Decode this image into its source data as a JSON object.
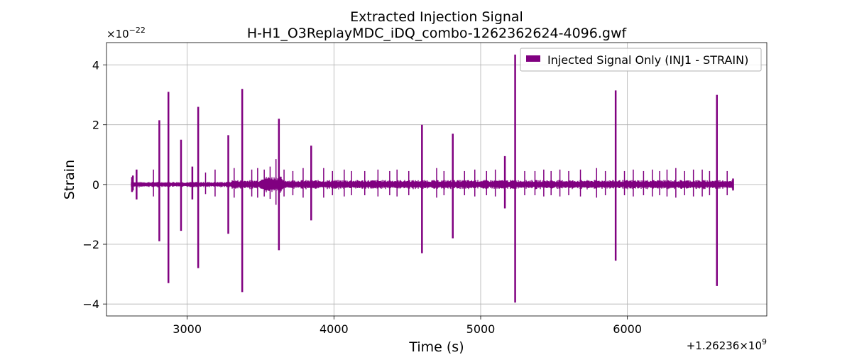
{
  "chart_data": {
    "type": "line",
    "title": "Extracted Injection Signal",
    "subtitle": "H-H1_O3ReplayMDC_iDQ_combo-1262362624-4096.gwf",
    "xlabel": "Time (s)",
    "ylabel": "Strain",
    "x_offset_label": "+1.26236×10",
    "x_offset_exp": "9",
    "y_scale_label": "×10",
    "y_scale_exp": "−22",
    "xlim": [
      2450,
      6950
    ],
    "ylim": [
      -4.4,
      4.75
    ],
    "xticks": [
      3000,
      4000,
      5000,
      6000
    ],
    "xtick_labels": [
      "3000",
      "4000",
      "5000",
      "6000"
    ],
    "yticks": [
      -4,
      -2,
      0,
      2,
      4
    ],
    "ytick_labels": [
      "−4",
      "−2",
      "0",
      "2",
      "4"
    ],
    "grid": true,
    "legend_position": "top-right",
    "series": [
      {
        "name": "Injected Signal Only (INJ1 - STRAIN)",
        "color": "#800080",
        "x_range": [
          2624,
          6720
        ],
        "baseline_amplitude": 0.15,
        "spikes": [
          {
            "x": 2630,
            "ymax": 0.3,
            "ymin": -0.2
          },
          {
            "x": 2655,
            "ymax": 0.5,
            "ymin": -0.5
          },
          {
            "x": 2810,
            "ymax": 2.15,
            "ymin": -1.9
          },
          {
            "x": 2872,
            "ymax": 3.1,
            "ymin": -3.3
          },
          {
            "x": 2958,
            "ymax": 1.5,
            "ymin": -1.55
          },
          {
            "x": 3035,
            "ymax": 0.6,
            "ymin": -0.5
          },
          {
            "x": 3075,
            "ymax": 2.6,
            "ymin": -2.8
          },
          {
            "x": 3280,
            "ymax": 1.65,
            "ymin": -1.65
          },
          {
            "x": 3375,
            "ymax": 3.2,
            "ymin": -3.6
          },
          {
            "x": 3625,
            "ymax": 2.2,
            "ymin": -2.2
          },
          {
            "x": 3845,
            "ymax": 1.3,
            "ymin": -1.2
          },
          {
            "x": 4600,
            "ymax": 2.0,
            "ymin": -2.3
          },
          {
            "x": 4810,
            "ymax": 1.7,
            "ymin": -1.8
          },
          {
            "x": 5165,
            "ymax": 0.95,
            "ymin": -0.8
          },
          {
            "x": 5235,
            "ymax": 4.35,
            "ymin": -3.95
          },
          {
            "x": 5920,
            "ymax": 3.15,
            "ymin": -2.55
          },
          {
            "x": 6610,
            "ymax": 3.0,
            "ymin": -3.4
          }
        ],
        "small_bursts": [
          {
            "x": 2770,
            "amp": 0.5
          },
          {
            "x": 3125,
            "amp": 0.4
          },
          {
            "x": 3190,
            "amp": 0.5
          },
          {
            "x": 3320,
            "amp": 0.55
          },
          {
            "x": 3440,
            "amp": 0.5
          },
          {
            "x": 3480,
            "amp": 0.55
          },
          {
            "x": 3525,
            "amp": 0.5
          },
          {
            "x": 3565,
            "amp": 0.6
          },
          {
            "x": 3605,
            "amp": 0.85
          },
          {
            "x": 3660,
            "amp": 0.5
          },
          {
            "x": 3720,
            "amp": 0.45
          },
          {
            "x": 3790,
            "amp": 0.55
          },
          {
            "x": 3930,
            "amp": 0.55
          },
          {
            "x": 3990,
            "amp": 0.45
          },
          {
            "x": 4070,
            "amp": 0.5
          },
          {
            "x": 4120,
            "amp": 0.45
          },
          {
            "x": 4210,
            "amp": 0.45
          },
          {
            "x": 4300,
            "amp": 0.5
          },
          {
            "x": 4380,
            "amp": 0.45
          },
          {
            "x": 4430,
            "amp": 0.5
          },
          {
            "x": 4510,
            "amp": 0.45
          },
          {
            "x": 4700,
            "amp": 0.55
          },
          {
            "x": 4750,
            "amp": 0.45
          },
          {
            "x": 4890,
            "amp": 0.45
          },
          {
            "x": 4960,
            "amp": 0.5
          },
          {
            "x": 5040,
            "amp": 0.45
          },
          {
            "x": 5100,
            "amp": 0.5
          },
          {
            "x": 5300,
            "amp": 0.45
          },
          {
            "x": 5370,
            "amp": 0.45
          },
          {
            "x": 5430,
            "amp": 0.5
          },
          {
            "x": 5480,
            "amp": 0.45
          },
          {
            "x": 5540,
            "amp": 0.5
          },
          {
            "x": 5600,
            "amp": 0.45
          },
          {
            "x": 5680,
            "amp": 0.5
          },
          {
            "x": 5790,
            "amp": 0.55
          },
          {
            "x": 5850,
            "amp": 0.45
          },
          {
            "x": 5980,
            "amp": 0.45
          },
          {
            "x": 6040,
            "amp": 0.5
          },
          {
            "x": 6110,
            "amp": 0.45
          },
          {
            "x": 6170,
            "amp": 0.5
          },
          {
            "x": 6220,
            "amp": 0.45
          },
          {
            "x": 6270,
            "amp": 0.5
          },
          {
            "x": 6330,
            "amp": 0.55
          },
          {
            "x": 6390,
            "amp": 0.45
          },
          {
            "x": 6450,
            "amp": 0.5
          },
          {
            "x": 6510,
            "amp": 0.5
          },
          {
            "x": 6560,
            "amp": 0.45
          },
          {
            "x": 6680,
            "amp": 0.45
          }
        ]
      }
    ]
  }
}
